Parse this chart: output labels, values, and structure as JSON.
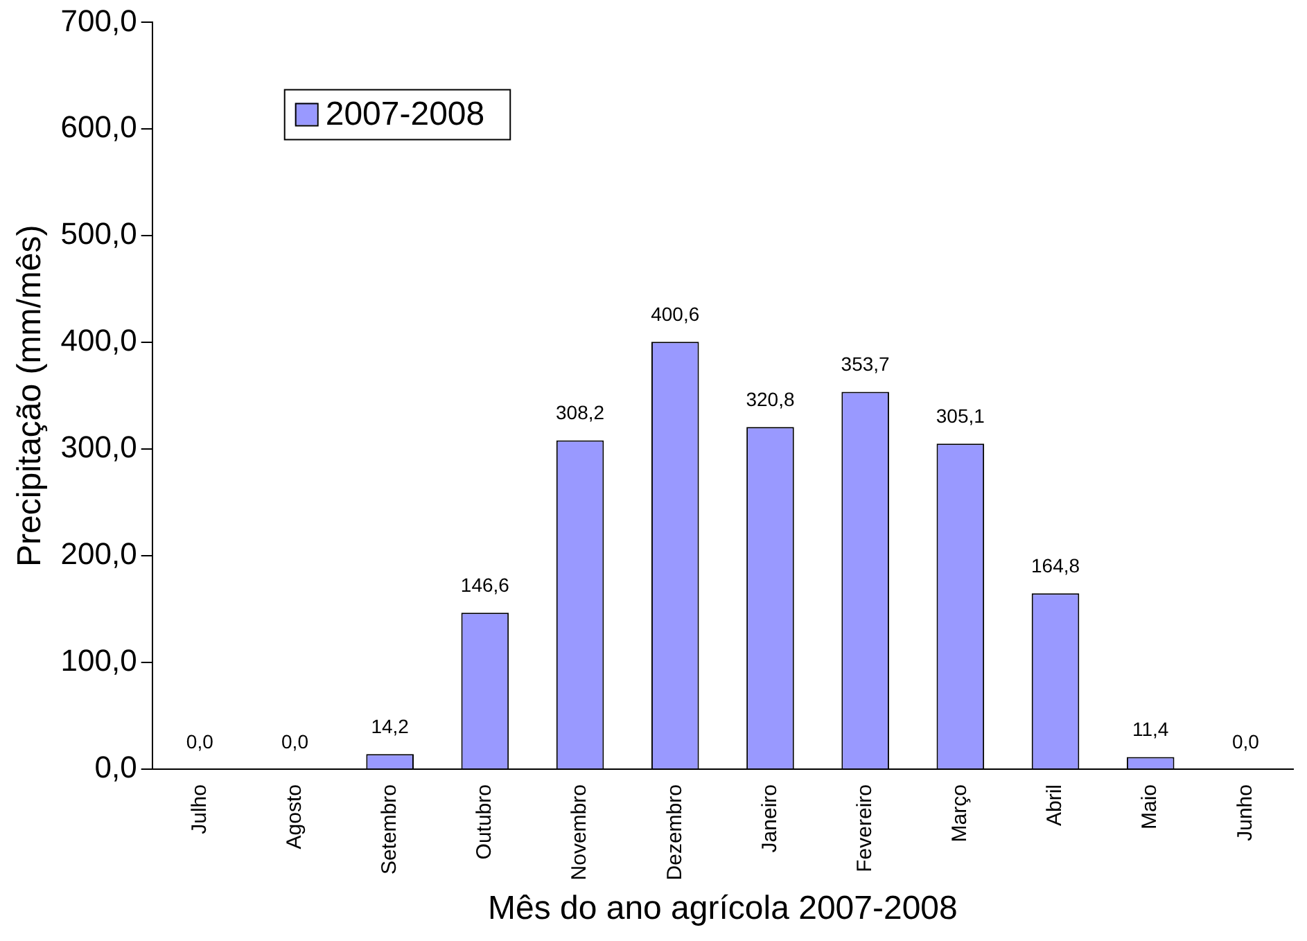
{
  "chart_data": {
    "type": "bar",
    "xlabel": "Mês do ano agrícola 2007-2008",
    "ylabel": "Precipitação (mm/mês)",
    "categories": [
      "Julho",
      "Agosto",
      "Setembro",
      "Outubro",
      "Novembro",
      "Dezembro",
      "Janeiro",
      "Fevereiro",
      "Março",
      "Abril",
      "Maio",
      "Junho"
    ],
    "series": [
      {
        "name": "2007-2008",
        "color": "#9999ff",
        "values": [
          0.0,
          0.0,
          14.2,
          146.6,
          308.2,
          400.6,
          320.8,
          353.7,
          305.1,
          164.8,
          11.4,
          0.0
        ],
        "value_labels": [
          "0,0",
          "0,0",
          "14,2",
          "146,6",
          "308,2",
          "400,6",
          "320,8",
          "353,7",
          "305,1",
          "164,8",
          "11,4",
          "0,0"
        ]
      }
    ],
    "ylim": [
      0,
      700
    ],
    "yticks": [
      {
        "value": 0,
        "label": "0,0"
      },
      {
        "value": 100,
        "label": "100,0"
      },
      {
        "value": 200,
        "label": "200,0"
      },
      {
        "value": 300,
        "label": "300,0"
      },
      {
        "value": 400,
        "label": "400,0"
      },
      {
        "value": 500,
        "label": "500,0"
      },
      {
        "value": 600,
        "label": "600,0"
      },
      {
        "value": 700,
        "label": "700,0"
      }
    ],
    "grid": false,
    "legend": "top left"
  }
}
